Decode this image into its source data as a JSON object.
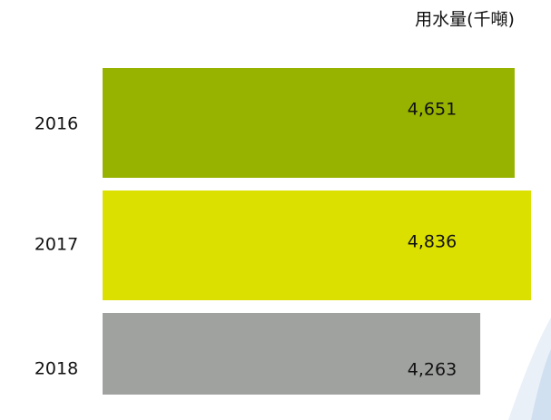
{
  "chart_data": {
    "type": "bar",
    "orientation": "horizontal",
    "unit_label": "用水量(千噸)",
    "categories": [
      "2016",
      "2017",
      "2018"
    ],
    "values": [
      4651,
      4836,
      4263
    ],
    "value_labels": [
      "4,651",
      "4,836",
      "4,263"
    ],
    "colors": [
      "#97b300",
      "#dce000",
      "#a0a2a0"
    ]
  }
}
